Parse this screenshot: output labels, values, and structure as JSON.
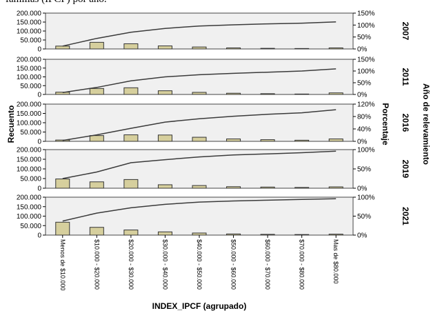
{
  "caption": "familias (IPCF) por año.",
  "chart_data": {
    "type": "bar",
    "categories": [
      "Menos de $10.000",
      "$10.000 - $20.000",
      "$20.000 - $30.000",
      "$30.000 - $40.000",
      "$40.000 - $50.000",
      "$50.000 - $60.000",
      "$60.000 - $70.000",
      "$70.000 - $80.000",
      "Mas de $80.000"
    ],
    "xlabel": "INDEX_IPCF (agrupado)",
    "ylabel": "Recuento",
    "y2label": "Porcentaje",
    "facet_label": "Año de relevamiento",
    "bar_color": "#d6cf9d",
    "line_color": "#3a3a3a",
    "panel_background": "#f0f0f0",
    "panels": [
      {
        "year": "2007",
        "ylim": [
          0,
          200000
        ],
        "yticks": [
          "200.000",
          "150.000",
          "100.000",
          "50.000",
          "0"
        ],
        "y2lim": [
          0,
          150
        ],
        "y2ticks": [
          "150%",
          "100%",
          "50%",
          "0%"
        ],
        "values": [
          16000,
          37000,
          29000,
          17000,
          11000,
          6000,
          3500,
          2500,
          6000
        ],
        "cumulative_pct": [
          12,
          44,
          70,
          86,
          96,
          101,
          105,
          108,
          113
        ]
      },
      {
        "year": "2011",
        "ylim": [
          0,
          200000
        ],
        "yticks": [
          "200.000",
          "150.000",
          "100.000",
          "50.000",
          "0"
        ],
        "y2lim": [
          0,
          150
        ],
        "y2ticks": [
          "150%",
          "100%",
          "50%",
          "0%"
        ],
        "values": [
          13000,
          34000,
          38000,
          21000,
          12000,
          7000,
          4500,
          2500,
          9000
        ],
        "cumulative_pct": [
          8,
          30,
          58,
          75,
          84,
          90,
          95,
          100,
          109
        ]
      },
      {
        "year": "2016",
        "ylim": [
          0,
          200000
        ],
        "yticks": [
          "200.000",
          "150.000",
          "100.000",
          "50.000",
          "0"
        ],
        "y2lim": [
          0,
          120
        ],
        "y2ticks": [
          "120%",
          "80%",
          "40%",
          "0%"
        ],
        "values": [
          7000,
          31000,
          35000,
          34000,
          22000,
          13000,
          9000,
          6000,
          13000
        ],
        "cumulative_pct": [
          3,
          21,
          42,
          62,
          73,
          81,
          87,
          92,
          102
        ]
      },
      {
        "year": "2019",
        "ylim": [
          0,
          200000
        ],
        "yticks": [
          "200.000",
          "150.000",
          "100.000",
          "50.000",
          "0"
        ],
        "y2lim": [
          0,
          100
        ],
        "y2ticks": [
          "100%",
          "50%",
          "0%"
        ],
        "values": [
          48000,
          33000,
          45000,
          18000,
          14000,
          8000,
          6000,
          4000,
          7000
        ],
        "cumulative_pct": [
          25,
          42,
          66,
          74,
          81,
          86,
          89,
          92,
          96
        ]
      },
      {
        "year": "2021",
        "ylim": [
          0,
          200000
        ],
        "yticks": [
          "200.000",
          "150.000",
          "100.000",
          "50.000",
          "0"
        ],
        "y2lim": [
          0,
          100
        ],
        "y2ticks": [
          "100%",
          "50%",
          "0%"
        ],
        "values": [
          68000,
          41000,
          27000,
          17000,
          11000,
          6000,
          4000,
          3000,
          5000
        ],
        "cumulative_pct": [
          37,
          58,
          72,
          81,
          87,
          90,
          92,
          94,
          96
        ]
      }
    ]
  }
}
